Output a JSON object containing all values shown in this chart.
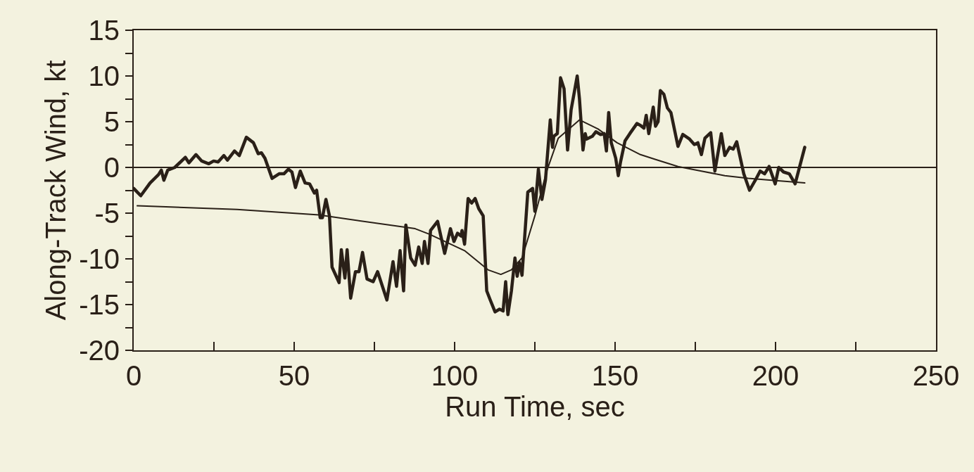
{
  "chart_data": {
    "type": "line",
    "xlabel": "Run Time, sec",
    "ylabel": "Along-Track Wind, kt",
    "xlim": [
      0,
      250
    ],
    "ylim": [
      -20,
      15
    ],
    "xticks": [
      0,
      {
        "value": 25,
        "label": null
      },
      50,
      {
        "value": 75,
        "label": null
      },
      100,
      {
        "value": 125,
        "label": null
      },
      150,
      {
        "value": 175,
        "label": null
      },
      200,
      {
        "value": 225,
        "label": null
      },
      250
    ],
    "yticks": [
      -20,
      {
        "value": -17.5,
        "label": null
      },
      -15,
      {
        "value": -12.5,
        "label": null
      },
      -10,
      {
        "value": -7.5,
        "label": null
      },
      -5,
      {
        "value": -2.5,
        "label": null
      },
      0,
      {
        "value": 2.5,
        "label": null
      },
      5,
      {
        "value": 7.5,
        "label": null
      },
      10,
      {
        "value": 12.5,
        "label": null
      },
      15
    ],
    "grid": false,
    "marker": "none",
    "line_style": "solid",
    "ref_lines": [
      {
        "axis": "y",
        "value": 0,
        "color": "#2a2018"
      }
    ],
    "series": [
      {
        "color": "#2a2018",
        "x": [
          0,
          2.2,
          5.1,
          7.7,
          8.6,
          9.4,
          10.6,
          12.8,
          14.3,
          16.1,
          17.2,
          19.4,
          21.2,
          23.4,
          24.9,
          26.3,
          28.1,
          29.2,
          31.4,
          32.9,
          35.1,
          37.3,
          38.8,
          39.8,
          40.9,
          43.1,
          45.3,
          46.8,
          48.2,
          49.3,
          50.4,
          51.9,
          53.4,
          54.8,
          56.3,
          57,
          58.1,
          58.8,
          59.9,
          61,
          61.8,
          64,
          64.7,
          65.8,
          66.5,
          67.6,
          69.1,
          70.2,
          71.3,
          72.7,
          74.6,
          76,
          78.9,
          80.8,
          81.9,
          83,
          84.1,
          84.8,
          86.3,
          87.7,
          88.8,
          89.9,
          90.6,
          91.7,
          92.5,
          94.7,
          96.9,
          98.7,
          99.8,
          100.9,
          102,
          102.3,
          103.1,
          104.2,
          105.3,
          106.4,
          107.5,
          108.9,
          110,
          111.1,
          112.6,
          114,
          115.1,
          115.9,
          116.6,
          117.7,
          118.8,
          119.5,
          120.2,
          121,
          122.8,
          124.3,
          125,
          126.1,
          127.2,
          128.3,
          129.8,
          130.5,
          130.9,
          132,
          133,
          134.1,
          135.2,
          136.3,
          138.2,
          138.9,
          140,
          140.7,
          141.1,
          142.9,
          144,
          145.5,
          146.6,
          147.3,
          148,
          148.8,
          150.2,
          151,
          151.7,
          153.1,
          154.6,
          156.8,
          157.9,
          159,
          159.7,
          160.5,
          161.9,
          162.6,
          163.4,
          164.1,
          165.2,
          166.3,
          167.4,
          169.6,
          171.1,
          173.2,
          174.7,
          175.8,
          176.9,
          178,
          179.8,
          181.1,
          183.1,
          184.2,
          185.7,
          186.8,
          187.9,
          190.1,
          191.9,
          193.7,
          195.2,
          196.6,
          198,
          199.9,
          201,
          202.5,
          204.3,
          206.1,
          209.1
        ],
        "values": [
          -2.3,
          -3.1,
          -1.7,
          -0.8,
          -0.3,
          -1.4,
          -0.3,
          0,
          0.5,
          1.1,
          0.5,
          1.4,
          0.7,
          0.4,
          0.7,
          0.6,
          1.3,
          0.8,
          1.8,
          1.3,
          3.3,
          2.7,
          1.5,
          1.6,
          1,
          -1.2,
          -0.7,
          -0.7,
          -0.2,
          -0.5,
          -2.2,
          -0.4,
          -1.7,
          -1.8,
          -2.8,
          -2.5,
          -5.5,
          -5.5,
          -3.5,
          -5.3,
          -10.9,
          -12.6,
          -9,
          -12.1,
          -9,
          -14.3,
          -11.4,
          -11.4,
          -9.3,
          -12.2,
          -12.5,
          -11.4,
          -14.5,
          -10.3,
          -13,
          -9.1,
          -13.5,
          -6.3,
          -9.9,
          -10.7,
          -8.7,
          -10.5,
          -8.1,
          -10.5,
          -6.9,
          -5.9,
          -9.4,
          -6.7,
          -8.1,
          -7.2,
          -7.5,
          -6.9,
          -8.4,
          -3.4,
          -3.9,
          -3.4,
          -4.5,
          -5.3,
          -13.5,
          -14.5,
          -15.8,
          -15.5,
          -15.7,
          -12.5,
          -16.1,
          -13.5,
          -9.9,
          -11.9,
          -10.4,
          -11.8,
          -2.7,
          -2.3,
          -4.8,
          -0.2,
          -3.5,
          -1.4,
          5.2,
          2.2,
          3.4,
          3.7,
          9.8,
          8.6,
          1.9,
          6.3,
          10,
          7.5,
          1.9,
          3.7,
          3.1,
          3.4,
          3.9,
          3.6,
          3.7,
          1.8,
          6,
          2.7,
          1,
          -0.9,
          0.6,
          2.9,
          3.7,
          4.8,
          4.6,
          4.3,
          5.7,
          3.7,
          6.6,
          4.5,
          5,
          8.4,
          8,
          6.5,
          6,
          2.3,
          3.6,
          3.1,
          2.5,
          2.7,
          1.4,
          3.2,
          3.8,
          -0.4,
          3.7,
          1.3,
          2.2,
          2,
          2.8,
          -0.7,
          -2.5,
          -1.4,
          -0.4,
          -0.7,
          0.1,
          -1.8,
          0,
          -0.5,
          -0.7,
          -1.8,
          2.2
        ]
      },
      {
        "color": "#2a2018",
        "x": [
          1.1,
          32.2,
          57.7,
          87.7,
          92.1,
          103.1,
          110.4,
          114.4,
          117.7,
          121,
          125,
          128.7,
          132.3,
          138.9,
          144.7,
          150.6,
          157.9,
          162.3,
          169.6,
          176.9,
          184.2,
          191.5,
          198.8,
          209.1
        ],
        "values": [
          -4.2,
          -4.6,
          -5.2,
          -6.7,
          -7.3,
          -9.1,
          -11.2,
          -11.7,
          -11.2,
          -9.9,
          -5.3,
          -0.4,
          3.2,
          5.2,
          4.2,
          2.7,
          1.4,
          0.9,
          0.1,
          -0.4,
          -0.9,
          -1.2,
          -1.4,
          -1.7
        ]
      }
    ]
  }
}
